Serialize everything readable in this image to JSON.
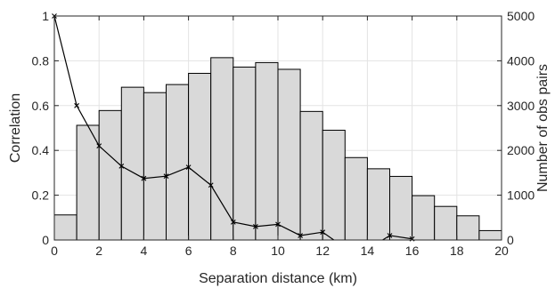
{
  "chart_data": {
    "type": "bar",
    "xlabel": "Separation distance (km)",
    "ylabel_left": "Correlation",
    "ylabel_right": "Number of obs pairs",
    "xlim": [
      0,
      20
    ],
    "ylim_left": [
      0,
      1
    ],
    "ylim_right": [
      0,
      5000
    ],
    "x_ticks": [
      0,
      2,
      4,
      6,
      8,
      10,
      12,
      14,
      16,
      18,
      20
    ],
    "y_left_ticks": [
      0,
      0.2,
      0.4,
      0.6,
      0.8,
      1
    ],
    "y_right_ticks": [
      0,
      1000,
      2000,
      3000,
      4000,
      5000
    ],
    "grid": true,
    "bars": {
      "axis": "right",
      "bin_width": 1,
      "bin_starts": [
        0,
        1,
        2,
        3,
        4,
        5,
        6,
        7,
        8,
        9,
        10,
        11,
        12,
        13,
        14,
        15,
        16,
        17,
        18,
        19
      ],
      "values": [
        560,
        2560,
        2890,
        3410,
        3290,
        3470,
        3720,
        4070,
        3860,
        3960,
        3810,
        2870,
        2450,
        1840,
        1590,
        1420,
        990,
        750,
        540,
        210
      ],
      "fill": "#d9d9d9",
      "edge": "#000000"
    },
    "line": {
      "axis": "left",
      "x": [
        0,
        1,
        2,
        3,
        4,
        5,
        6,
        7,
        8,
        9,
        10,
        11,
        12
      ],
      "y": [
        1.0,
        0.6,
        0.42,
        0.33,
        0.275,
        0.285,
        0.325,
        0.245,
        0.08,
        0.06,
        0.07,
        0.02,
        0.035
      ],
      "extra_segment": {
        "x": [
          15,
          16
        ],
        "y": [
          0.02,
          0.005
        ]
      },
      "color": "#000000",
      "marker": "x"
    }
  }
}
